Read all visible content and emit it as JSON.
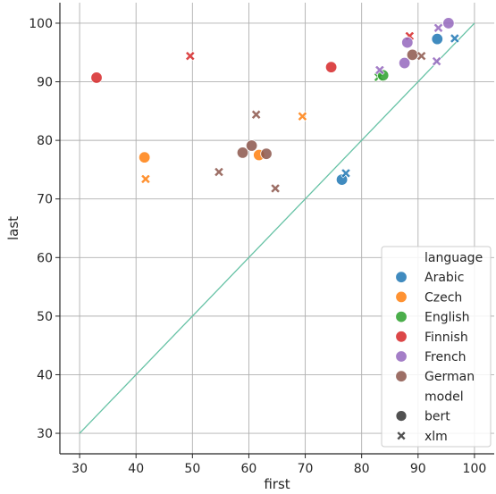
{
  "chart_data": {
    "type": "scatter",
    "xlabel": "first",
    "ylabel": "last",
    "xlim": [
      26.5,
      103.5
    ],
    "ylim": [
      26.5,
      103.5
    ],
    "x_ticks": [
      30,
      40,
      50,
      60,
      70,
      80,
      90,
      100
    ],
    "y_ticks": [
      30,
      40,
      50,
      60,
      70,
      80,
      90,
      100
    ],
    "x_tick_labels": [
      "30",
      "40",
      "50",
      "60",
      "70",
      "80",
      "90",
      "100"
    ],
    "y_tick_labels": [
      "30",
      "40",
      "50",
      "60",
      "70",
      "80",
      "90",
      "100"
    ],
    "grid": true,
    "reference_line": {
      "x": [
        30,
        100
      ],
      "y": [
        30,
        100
      ],
      "color": "#66c2a5"
    },
    "legend": {
      "placement": "lower-right",
      "hue_title": "language",
      "style_title": "model",
      "languages": [
        {
          "name": "Arabic",
          "color": "#1f77b4"
        },
        {
          "name": "Czech",
          "color": "#ff7f0e"
        },
        {
          "name": "English",
          "color": "#2ca02c"
        },
        {
          "name": "Finnish",
          "color": "#d62728"
        },
        {
          "name": "French",
          "color": "#9467bd"
        },
        {
          "name": "German",
          "color": "#8c564b"
        }
      ],
      "models": [
        {
          "name": "bert",
          "marker": "circle"
        },
        {
          "name": "xlm",
          "marker": "x"
        }
      ]
    },
    "points": [
      {
        "language": "Finnish",
        "model": "bert",
        "x": 33.0,
        "y": 90.7
      },
      {
        "language": "Finnish",
        "model": "xlm",
        "x": 49.6,
        "y": 94.4
      },
      {
        "language": "Finnish",
        "model": "bert",
        "x": 74.6,
        "y": 92.5
      },
      {
        "language": "Finnish",
        "model": "xlm",
        "x": 88.5,
        "y": 97.8
      },
      {
        "language": "Czech",
        "model": "bert",
        "x": 41.5,
        "y": 77.1
      },
      {
        "language": "Czech",
        "model": "xlm",
        "x": 41.7,
        "y": 73.4
      },
      {
        "language": "Czech",
        "model": "xlm",
        "x": 69.5,
        "y": 84.1
      },
      {
        "language": "Czech",
        "model": "bert",
        "x": 61.8,
        "y": 77.5
      },
      {
        "language": "German",
        "model": "xlm",
        "x": 54.7,
        "y": 74.6
      },
      {
        "language": "German",
        "model": "bert",
        "x": 58.9,
        "y": 77.9
      },
      {
        "language": "German",
        "model": "bert",
        "x": 60.5,
        "y": 79.1
      },
      {
        "language": "German",
        "model": "xlm",
        "x": 61.3,
        "y": 84.4
      },
      {
        "language": "German",
        "model": "bert",
        "x": 63.1,
        "y": 77.7
      },
      {
        "language": "German",
        "model": "xlm",
        "x": 64.7,
        "y": 71.8
      },
      {
        "language": "German",
        "model": "bert",
        "x": 89.0,
        "y": 94.6
      },
      {
        "language": "German",
        "model": "xlm",
        "x": 90.6,
        "y": 94.4
      },
      {
        "language": "Arabic",
        "model": "bert",
        "x": 76.5,
        "y": 73.3
      },
      {
        "language": "Arabic",
        "model": "xlm",
        "x": 77.2,
        "y": 74.4
      },
      {
        "language": "Arabic",
        "model": "bert",
        "x": 93.4,
        "y": 97.3
      },
      {
        "language": "Arabic",
        "model": "xlm",
        "x": 96.5,
        "y": 97.4
      },
      {
        "language": "English",
        "model": "xlm",
        "x": 83.0,
        "y": 90.8
      },
      {
        "language": "English",
        "model": "bert",
        "x": 83.8,
        "y": 91.1
      },
      {
        "language": "French",
        "model": "xlm",
        "x": 83.2,
        "y": 92.0
      },
      {
        "language": "French",
        "model": "bert",
        "x": 87.6,
        "y": 93.2
      },
      {
        "language": "French",
        "model": "bert",
        "x": 88.1,
        "y": 96.7
      },
      {
        "language": "French",
        "model": "xlm",
        "x": 93.3,
        "y": 93.5
      },
      {
        "language": "French",
        "model": "xlm",
        "x": 93.6,
        "y": 99.2
      },
      {
        "language": "French",
        "model": "bert",
        "x": 95.4,
        "y": 100.0
      }
    ]
  }
}
